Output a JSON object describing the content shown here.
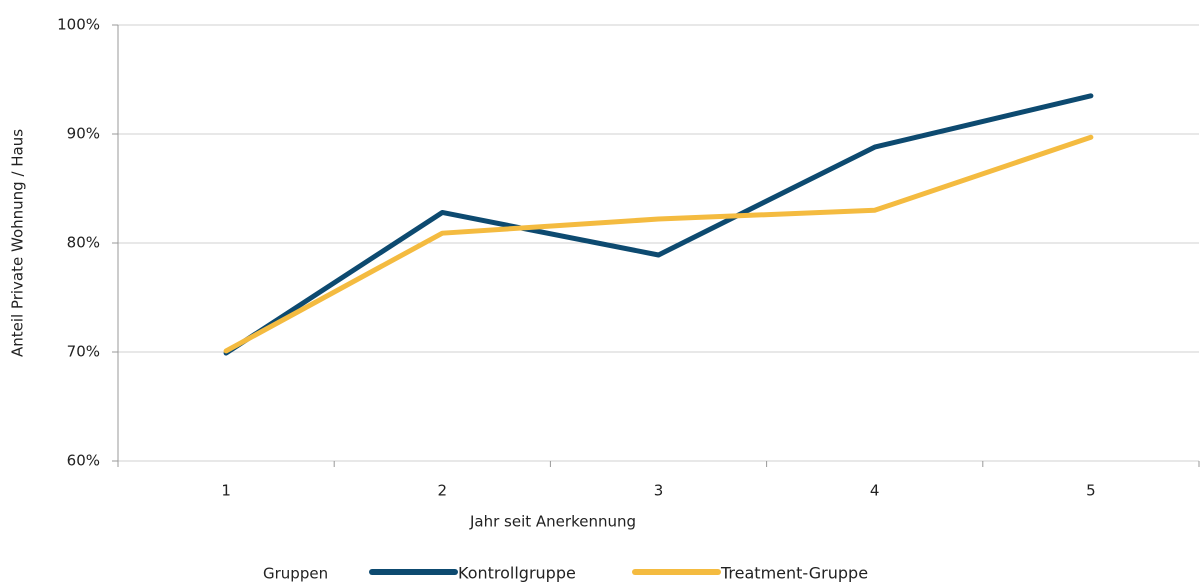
{
  "chart_data": {
    "type": "line",
    "x_label": "Jahr seit Anerkennung",
    "y_label": "Anteil Private Wohnung / Haus",
    "categories": [
      "1",
      "2",
      "3",
      "4",
      "5"
    ],
    "series": [
      {
        "name": "Kontrollgruppe",
        "color": "#0d4a70",
        "values": [
          69.9,
          82.8,
          78.9,
          88.8,
          93.5
        ]
      },
      {
        "name": "Treatment-Gruppe",
        "color": "#f4bb40",
        "values": [
          70.1,
          80.9,
          82.2,
          83.0,
          89.7
        ]
      }
    ],
    "ylim": [
      60,
      100
    ],
    "yticks": [
      {
        "value": 60,
        "label": "60%"
      },
      {
        "value": 70,
        "label": "70%"
      },
      {
        "value": 80,
        "label": "80%"
      },
      {
        "value": 90,
        "label": "90%"
      },
      {
        "value": 100,
        "label": "100%"
      }
    ],
    "grid": true,
    "legend_title": "Gruppen",
    "legend": "bottom"
  }
}
